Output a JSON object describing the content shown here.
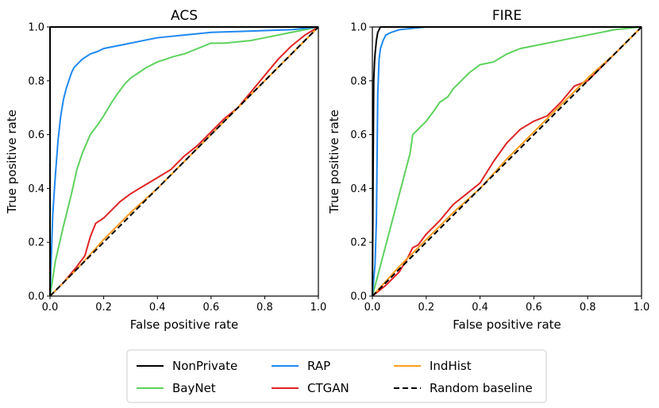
{
  "chart_data": [
    {
      "type": "line",
      "title": "ACS",
      "xlabel": "False positive rate",
      "ylabel": "True positive rate",
      "xlim": [
        0,
        1
      ],
      "ylim": [
        0,
        1
      ],
      "xticks": [
        "0.0",
        "0.2",
        "0.4",
        "0.6",
        "0.8",
        "1.0"
      ],
      "yticks": [
        "0.0",
        "0.2",
        "0.4",
        "0.6",
        "0.8",
        "1.0"
      ],
      "series": [
        {
          "name": "NonPrivate",
          "color": "#000000",
          "dash": false,
          "x": [
            0,
            0,
            1
          ],
          "y": [
            0,
            1,
            1
          ]
        },
        {
          "name": "BayNet",
          "color": "#5ed15e",
          "dash": false,
          "x": [
            0,
            0.02,
            0.05,
            0.08,
            0.1,
            0.12,
            0.15,
            0.18,
            0.2,
            0.23,
            0.25,
            0.28,
            0.3,
            0.33,
            0.36,
            0.4,
            0.43,
            0.46,
            0.5,
            0.55,
            0.6,
            0.65,
            0.75,
            0.8,
            0.9,
            1
          ],
          "y": [
            0,
            0.13,
            0.26,
            0.38,
            0.47,
            0.53,
            0.6,
            0.64,
            0.67,
            0.72,
            0.75,
            0.79,
            0.81,
            0.83,
            0.85,
            0.87,
            0.88,
            0.89,
            0.9,
            0.92,
            0.94,
            0.94,
            0.95,
            0.96,
            0.98,
            1
          ]
        },
        {
          "name": "RAP",
          "color": "#1f88f0",
          "dash": false,
          "x": [
            0,
            0.01,
            0.02,
            0.03,
            0.04,
            0.05,
            0.06,
            0.07,
            0.08,
            0.09,
            0.1,
            0.12,
            0.15,
            0.18,
            0.2,
            0.25,
            0.3,
            0.35,
            0.4,
            0.5,
            0.55,
            0.6,
            0.75,
            0.9,
            1
          ],
          "y": [
            0,
            0.3,
            0.45,
            0.58,
            0.67,
            0.73,
            0.77,
            0.8,
            0.83,
            0.85,
            0.86,
            0.88,
            0.9,
            0.91,
            0.92,
            0.93,
            0.94,
            0.95,
            0.96,
            0.97,
            0.975,
            0.98,
            0.985,
            0.99,
            1
          ]
        },
        {
          "name": "CTGAN",
          "color": "#e02424",
          "dash": false,
          "x": [
            0,
            0.05,
            0.1,
            0.13,
            0.15,
            0.17,
            0.2,
            0.23,
            0.26,
            0.3,
            0.35,
            0.4,
            0.45,
            0.5,
            0.55,
            0.6,
            0.65,
            0.7,
            0.75,
            0.8,
            0.85,
            0.9,
            0.95,
            1
          ],
          "y": [
            0,
            0.05,
            0.11,
            0.15,
            0.22,
            0.27,
            0.29,
            0.32,
            0.35,
            0.38,
            0.41,
            0.44,
            0.47,
            0.52,
            0.56,
            0.61,
            0.66,
            0.7,
            0.76,
            0.82,
            0.88,
            0.93,
            0.97,
            1
          ]
        },
        {
          "name": "IndHist",
          "color": "#ff9d1f",
          "dash": false,
          "x": [
            0,
            0.1,
            0.2,
            0.3,
            0.4,
            0.5,
            0.6,
            0.7,
            0.8,
            0.9,
            1
          ],
          "y": [
            0,
            0.1,
            0.21,
            0.31,
            0.4,
            0.5,
            0.6,
            0.7,
            0.8,
            0.9,
            1
          ]
        },
        {
          "name": "Random baseline",
          "color": "#000000",
          "dash": true,
          "x": [
            0,
            1
          ],
          "y": [
            0,
            1
          ]
        }
      ]
    },
    {
      "type": "line",
      "title": "FIRE",
      "xlabel": "False positive rate",
      "ylabel": "True positive rate",
      "xlim": [
        0,
        1
      ],
      "ylim": [
        0,
        1
      ],
      "xticks": [
        "0.0",
        "0.2",
        "0.4",
        "0.6",
        "0.8",
        "1.0"
      ],
      "yticks": [
        "0.0",
        "0.2",
        "0.4",
        "0.6",
        "0.8",
        "1.0"
      ],
      "series": [
        {
          "name": "NonPrivate",
          "color": "#000000",
          "dash": false,
          "x": [
            0,
            0.003,
            0.005,
            0.008,
            0.01,
            0.015,
            0.02,
            0.03,
            1
          ],
          "y": [
            0,
            0.5,
            0.8,
            0.87,
            0.9,
            0.95,
            0.98,
            1,
            1
          ]
        },
        {
          "name": "BayNet",
          "color": "#5ed15e",
          "dash": false,
          "x": [
            0,
            0.14,
            0.15,
            0.18,
            0.2,
            0.23,
            0.25,
            0.28,
            0.3,
            0.33,
            0.36,
            0.4,
            0.45,
            0.5,
            0.55,
            0.6,
            0.7,
            0.8,
            0.9,
            1
          ],
          "y": [
            0,
            0.53,
            0.6,
            0.63,
            0.65,
            0.69,
            0.72,
            0.74,
            0.77,
            0.8,
            0.83,
            0.86,
            0.87,
            0.9,
            0.92,
            0.93,
            0.95,
            0.97,
            0.99,
            1
          ]
        },
        {
          "name": "RAP",
          "color": "#1f88f0",
          "dash": false,
          "x": [
            0,
            0.01,
            0.015,
            0.02,
            0.025,
            0.03,
            0.04,
            0.05,
            0.07,
            0.1,
            0.15,
            0.2,
            1
          ],
          "y": [
            0,
            0.12,
            0.28,
            0.75,
            0.88,
            0.92,
            0.95,
            0.97,
            0.98,
            0.99,
            0.995,
            1,
            1
          ]
        },
        {
          "name": "CTGAN",
          "color": "#e02424",
          "dash": false,
          "x": [
            0,
            0.05,
            0.1,
            0.13,
            0.15,
            0.17,
            0.2,
            0.25,
            0.3,
            0.35,
            0.4,
            0.45,
            0.5,
            0.55,
            0.6,
            0.65,
            0.7,
            0.75,
            0.8,
            0.85,
            0.9,
            0.95,
            1
          ],
          "y": [
            0,
            0.04,
            0.09,
            0.14,
            0.18,
            0.19,
            0.23,
            0.28,
            0.34,
            0.38,
            0.42,
            0.5,
            0.57,
            0.62,
            0.65,
            0.67,
            0.72,
            0.78,
            0.8,
            0.85,
            0.9,
            0.95,
            1
          ]
        },
        {
          "name": "IndHist",
          "color": "#ff9d1f",
          "dash": false,
          "x": [
            0,
            0.1,
            0.2,
            0.3,
            0.4,
            0.5,
            0.6,
            0.7,
            0.8,
            0.9,
            1
          ],
          "y": [
            0,
            0.11,
            0.21,
            0.31,
            0.4,
            0.51,
            0.61,
            0.71,
            0.81,
            0.9,
            1
          ]
        },
        {
          "name": "Random baseline",
          "color": "#000000",
          "dash": true,
          "x": [
            0,
            1
          ],
          "y": [
            0,
            1
          ]
        }
      ]
    }
  ],
  "legend": {
    "placement": "bottom-center",
    "entries": [
      {
        "label": "NonPrivate",
        "color": "#000000",
        "dash": false
      },
      {
        "label": "RAP",
        "color": "#1f88f0",
        "dash": false
      },
      {
        "label": "IndHist",
        "color": "#ff9d1f",
        "dash": false
      },
      {
        "label": "BayNet",
        "color": "#5ed15e",
        "dash": false
      },
      {
        "label": "CTGAN",
        "color": "#e02424",
        "dash": false
      },
      {
        "label": "Random baseline",
        "color": "#000000",
        "dash": true
      }
    ]
  }
}
